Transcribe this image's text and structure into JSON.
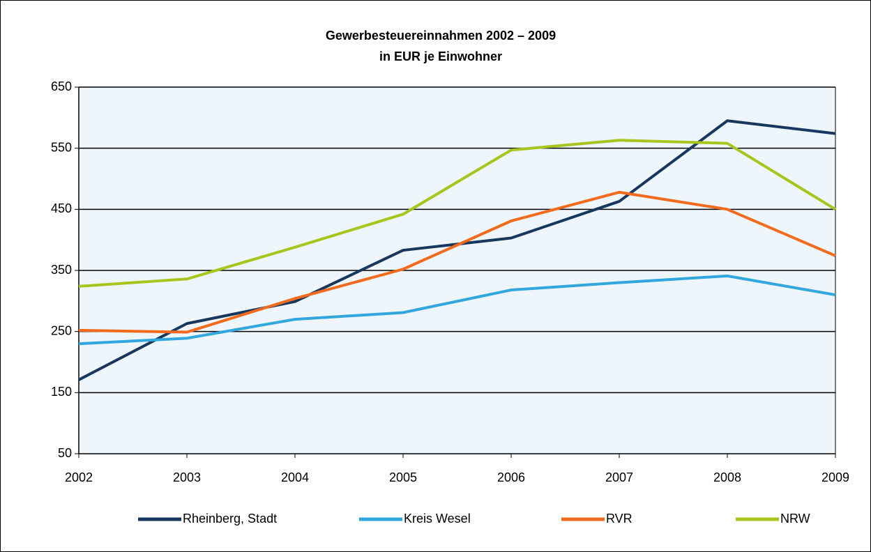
{
  "chart_data": {
    "type": "line",
    "title": "Gewerbesteuereinnahmen 2002 – 2009",
    "subtitle": "in EUR je Einwohner",
    "categories": [
      "2002",
      "2003",
      "2004",
      "2005",
      "2006",
      "2007",
      "2008",
      "2009"
    ],
    "series": [
      {
        "name": "Rheinberg, Stadt",
        "color": "#17375e",
        "values": [
          171,
          263,
          299,
          383,
          403,
          463,
          595,
          574
        ]
      },
      {
        "name": "Kreis Wesel",
        "color": "#31a7dd",
        "values": [
          230,
          239,
          270,
          281,
          318,
          330,
          341,
          310
        ]
      },
      {
        "name": "RVR",
        "color": "#f26b1d",
        "values": [
          252,
          249,
          304,
          352,
          431,
          478,
          450,
          374
        ]
      },
      {
        "name": "NRW",
        "color": "#a9c41d",
        "values": [
          324,
          336,
          388,
          442,
          547,
          563,
          558,
          450
        ]
      }
    ],
    "ylim": [
      50,
      650
    ],
    "yticks": [
      50,
      150,
      250,
      350,
      450,
      550,
      650
    ],
    "grid": true,
    "legend": "bottom"
  }
}
